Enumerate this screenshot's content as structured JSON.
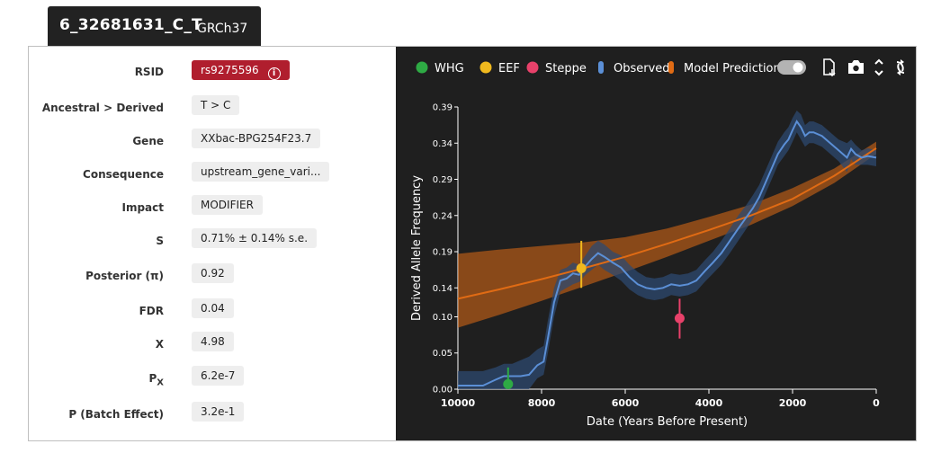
{
  "header": {
    "variant_id": "6_32681631_C_T",
    "build": "GRCh37"
  },
  "info": {
    "rows": [
      {
        "label": "RSID",
        "value": "rs9275596"
      },
      {
        "label": "Ancestral > Derived",
        "value": "T > C"
      },
      {
        "label": "Gene",
        "value": "XXbac-BPG254F23.7"
      },
      {
        "label": "Consequence",
        "value": "upstream_gene_vari..."
      },
      {
        "label": "Impact",
        "value": "MODIFIER"
      },
      {
        "label": "S",
        "value": "0.71% ± 0.14% s.e."
      },
      {
        "label": "Posterior (π)",
        "value": "0.92"
      },
      {
        "label": "FDR",
        "value": "0.04"
      },
      {
        "label": "X",
        "value": "4.98"
      },
      {
        "label_main": "P",
        "label_sub": "X",
        "value": "6.2e-7"
      },
      {
        "label": "P (Batch Effect)",
        "value": "3.2e-1"
      }
    ],
    "info_icon": "info-circle-icon",
    "info_icon_glyph": "i"
  },
  "toolbar": {
    "legend": [
      {
        "label": "WHG",
        "color": "#2eaa44"
      },
      {
        "label": "EEF",
        "color": "#f0b91e"
      },
      {
        "label": "Steppe",
        "color": "#e8416a"
      },
      {
        "label": "Observed",
        "color": "#5b8fd6"
      },
      {
        "label": "Model Prediction",
        "color": "#e06b14"
      }
    ],
    "toggle_on": true,
    "icons": [
      "download-file-icon",
      "camera-icon",
      "expand-vertical-icon",
      "refresh-icon"
    ]
  },
  "chart_data": {
    "type": "line",
    "xlabel": "Date (Years Before Present)",
    "ylabel": "Derived Allele Frequency",
    "xlim": [
      10000,
      0
    ],
    "ylim": [
      0,
      0.39
    ],
    "x_ticks": [
      10000,
      8000,
      6000,
      4000,
      2000,
      0
    ],
    "y_ticks": [
      0.0,
      0.05,
      0.1,
      0.14,
      0.19,
      0.24,
      0.29,
      0.34,
      0.39
    ],
    "y_tick_labels": [
      "0.00",
      "0.05",
      "0.10",
      "0.14",
      "0.19",
      "0.24",
      "0.29",
      "0.34",
      "0.39"
    ],
    "observed": {
      "x": [
        10000,
        9700,
        9400,
        9100,
        8900,
        8700,
        8500,
        8300,
        8100,
        7950,
        7850,
        7700,
        7550,
        7400,
        7250,
        7100,
        6950,
        6800,
        6650,
        6500,
        6300,
        6100,
        5900,
        5700,
        5500,
        5300,
        5100,
        4900,
        4700,
        4500,
        4300,
        4100,
        3900,
        3700,
        3500,
        3300,
        3100,
        2950,
        2800,
        2650,
        2500,
        2350,
        2200,
        2100,
        2000,
        1900,
        1800,
        1700,
        1600,
        1500,
        1300,
        1100,
        900,
        700,
        600,
        500,
        350,
        200,
        0
      ],
      "y": [
        0.005,
        0.005,
        0.005,
        0.013,
        0.018,
        0.018,
        0.018,
        0.02,
        0.033,
        0.038,
        0.07,
        0.12,
        0.15,
        0.153,
        0.16,
        0.158,
        0.17,
        0.18,
        0.188,
        0.183,
        0.175,
        0.168,
        0.155,
        0.145,
        0.14,
        0.138,
        0.14,
        0.145,
        0.143,
        0.145,
        0.15,
        0.163,
        0.175,
        0.188,
        0.205,
        0.222,
        0.238,
        0.25,
        0.265,
        0.285,
        0.305,
        0.325,
        0.338,
        0.345,
        0.358,
        0.37,
        0.362,
        0.35,
        0.355,
        0.355,
        0.35,
        0.34,
        0.33,
        0.32,
        0.332,
        0.325,
        0.32,
        0.322,
        0.32
      ],
      "lower": [
        0.0,
        0.0,
        0.0,
        0.0,
        0.0,
        0.0,
        0.0,
        0.0,
        0.015,
        0.02,
        0.05,
        0.1,
        0.135,
        0.14,
        0.145,
        0.148,
        0.158,
        0.165,
        0.172,
        0.165,
        0.158,
        0.15,
        0.138,
        0.13,
        0.125,
        0.123,
        0.125,
        0.13,
        0.128,
        0.13,
        0.135,
        0.148,
        0.16,
        0.172,
        0.188,
        0.205,
        0.222,
        0.235,
        0.25,
        0.27,
        0.29,
        0.31,
        0.322,
        0.33,
        0.342,
        0.355,
        0.345,
        0.335,
        0.34,
        0.34,
        0.335,
        0.325,
        0.315,
        0.3,
        0.318,
        0.31,
        0.31,
        0.31,
        0.308
      ],
      "upper": [
        0.025,
        0.025,
        0.025,
        0.03,
        0.035,
        0.035,
        0.04,
        0.045,
        0.055,
        0.06,
        0.095,
        0.14,
        0.165,
        0.168,
        0.175,
        0.172,
        0.185,
        0.198,
        0.205,
        0.2,
        0.19,
        0.185,
        0.172,
        0.162,
        0.155,
        0.153,
        0.155,
        0.16,
        0.158,
        0.16,
        0.165,
        0.178,
        0.19,
        0.205,
        0.222,
        0.24,
        0.255,
        0.268,
        0.282,
        0.302,
        0.322,
        0.342,
        0.355,
        0.362,
        0.375,
        0.385,
        0.38,
        0.365,
        0.37,
        0.37,
        0.365,
        0.355,
        0.345,
        0.34,
        0.345,
        0.338,
        0.33,
        0.333,
        0.33
      ]
    },
    "model_prediction": {
      "x": [
        10000,
        9000,
        8000,
        7000,
        6000,
        5000,
        4000,
        3000,
        2000,
        1000,
        0
      ],
      "y": [
        0.125,
        0.138,
        0.152,
        0.167,
        0.183,
        0.201,
        0.22,
        0.24,
        0.263,
        0.295,
        0.333
      ],
      "lower": [
        0.085,
        0.103,
        0.122,
        0.142,
        0.162,
        0.183,
        0.205,
        0.227,
        0.253,
        0.285,
        0.325
      ],
      "upper": [
        0.187,
        0.193,
        0.198,
        0.203,
        0.21,
        0.222,
        0.238,
        0.255,
        0.278,
        0.305,
        0.342
      ]
    },
    "populations": [
      {
        "name": "WHG",
        "x": 8800,
        "y": 0.007,
        "lower": 0.0,
        "upper": 0.03
      },
      {
        "name": "EEF",
        "x": 7050,
        "y": 0.167,
        "lower": 0.14,
        "upper": 0.205
      },
      {
        "name": "Steppe",
        "x": 4700,
        "y": 0.098,
        "lower": 0.07,
        "upper": 0.125
      }
    ]
  }
}
